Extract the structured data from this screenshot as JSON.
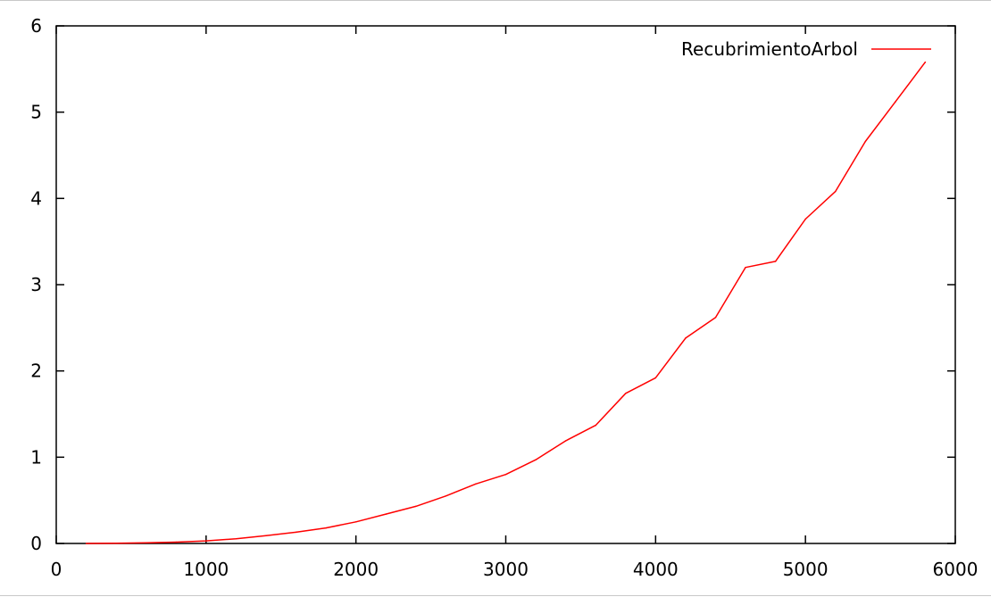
{
  "chart_data": {
    "type": "line",
    "title": "",
    "xlabel": "",
    "ylabel": "",
    "xlim": [
      0,
      6000
    ],
    "ylim": [
      0,
      6
    ],
    "x_ticks": [
      0,
      1000,
      2000,
      3000,
      4000,
      5000,
      6000
    ],
    "y_ticks": [
      0,
      1,
      2,
      3,
      4,
      5,
      6
    ],
    "grid": false,
    "legend_position": "top-right",
    "series": [
      {
        "name": "RecubrimientoArbol",
        "color": "#ff0000",
        "x": [
          200,
          400,
          600,
          800,
          1000,
          1200,
          1400,
          1600,
          1800,
          2000,
          2200,
          2400,
          2600,
          2800,
          3000,
          3200,
          3400,
          3600,
          3800,
          4000,
          4200,
          4400,
          4600,
          4800,
          5000,
          5200,
          5400,
          5600,
          5800
        ],
        "y": [
          0.0,
          0.003,
          0.008,
          0.015,
          0.03,
          0.055,
          0.09,
          0.13,
          0.18,
          0.25,
          0.34,
          0.43,
          0.55,
          0.69,
          0.8,
          0.97,
          1.19,
          1.37,
          1.74,
          1.92,
          2.38,
          2.62,
          3.2,
          3.27,
          3.76,
          4.08,
          4.66,
          5.12,
          5.58
        ]
      }
    ]
  }
}
